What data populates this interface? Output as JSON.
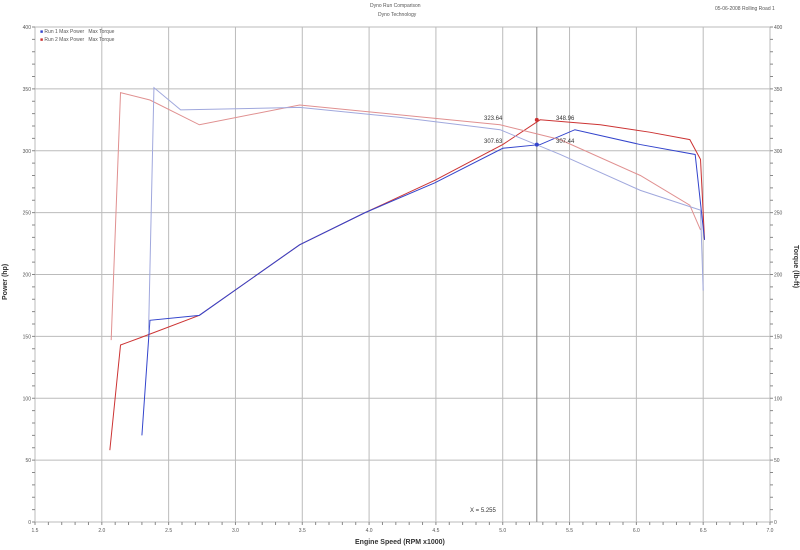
{
  "header": {
    "title": "Dyno Run Comparison",
    "subtitle": "Dyno Technology",
    "corner": "05-06-2008 Rolling Road 1"
  },
  "legend": [
    {
      "name": "Run 1 Max Power",
      "color": "#3344cc",
      "peak": "Max Torque"
    },
    {
      "name": "Run 2 Max Power",
      "color": "#cc3333",
      "peak": "Max Torque"
    }
  ],
  "chart_data": {
    "type": "line",
    "xlabel": "Engine Speed (RPM x1000)",
    "ylabel": "Power (hp)",
    "y2label": "Torque (lb-ft)",
    "xlim": [
      1.5,
      7.0
    ],
    "ylim": [
      0,
      400
    ],
    "y2lim": [
      0,
      400
    ],
    "xticks": [
      "1.5",
      "2.0",
      "2.5",
      "3.0",
      "3.5",
      "4.0",
      "4.5",
      "5.0",
      "5.5",
      "6.0",
      "6.5",
      "7.0"
    ],
    "yticks": [
      "0",
      "50",
      "100",
      "150",
      "200",
      "250",
      "300",
      "350",
      "400"
    ],
    "grid": true,
    "legend_position": "top-left",
    "cursor": {
      "x": 5.255,
      "label": "X = 5.255"
    },
    "readouts": [
      {
        "series": "red",
        "left": "323.64",
        "right": "348.96"
      },
      {
        "series": "blue",
        "left": "307.63",
        "right": "307.44"
      }
    ],
    "series": [
      {
        "id": "red-power",
        "color": "#cc3333",
        "x": [
          2.06,
          2.14,
          2.29,
          2.73,
          3.48,
          3.97,
          4.49,
          5.0,
          5.28,
          5.73,
          6.1,
          6.4,
          6.48,
          6.51
        ],
        "y": [
          58,
          143,
          149,
          167,
          224,
          250,
          276,
          305,
          325,
          321,
          315,
          309,
          293,
          228
        ]
      },
      {
        "id": "blue-power",
        "color": "#3344cc",
        "x": [
          2.3,
          2.36,
          2.73,
          3.48,
          3.97,
          4.49,
          5.0,
          5.28,
          5.54,
          6.03,
          6.44,
          6.51
        ],
        "y": [
          70,
          163,
          167,
          224,
          250,
          274,
          302,
          305,
          317,
          305,
          297,
          228
        ]
      },
      {
        "id": "red-torque",
        "color": "#e09090",
        "x": [
          2.07,
          2.14,
          2.36,
          2.73,
          3.48,
          4.23,
          4.98,
          5.43,
          6.03,
          6.4,
          6.48
        ],
        "y": [
          147,
          347,
          341,
          321,
          337,
          329,
          321,
          309,
          280,
          256,
          236
        ]
      },
      {
        "id": "blue-torque",
        "color": "#a0a8dd",
        "x": [
          2.35,
          2.39,
          2.59,
          3.48,
          4.23,
          4.98,
          5.43,
          6.03,
          6.48,
          6.5
        ],
        "y": [
          155,
          351,
          333,
          335,
          327,
          317,
          297,
          268,
          252,
          187
        ]
      }
    ]
  }
}
